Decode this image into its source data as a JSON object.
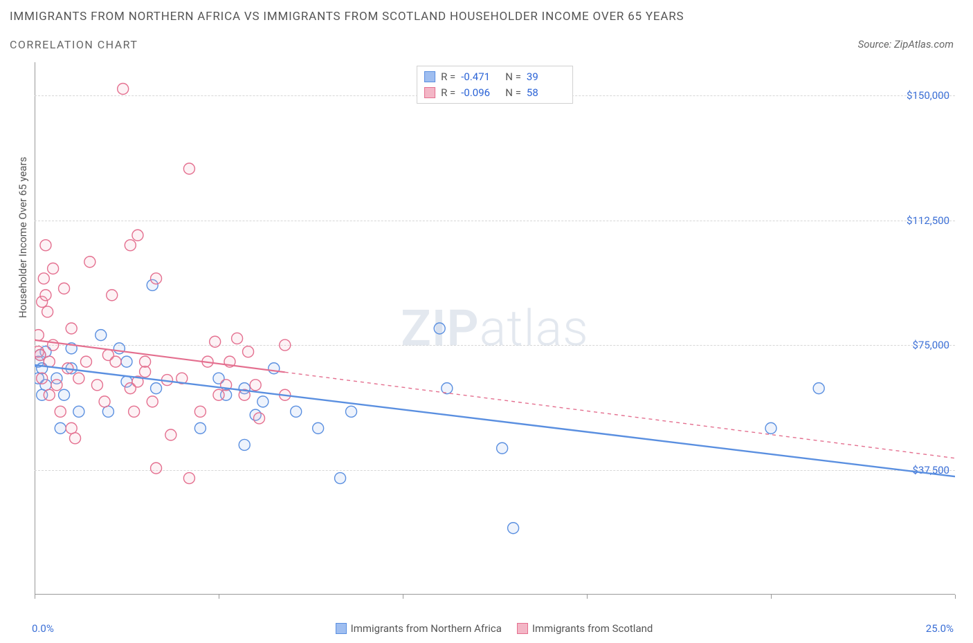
{
  "title": "IMMIGRANTS FROM NORTHERN AFRICA VS IMMIGRANTS FROM SCOTLAND HOUSEHOLDER INCOME OVER 65 YEARS",
  "subtitle": "CORRELATION CHART",
  "source_label": "Source: ",
  "source_name": "ZipAtlas.com",
  "watermark_zip": "ZIP",
  "watermark_atlas": "atlas",
  "ylabel": "Householder Income Over 65 years",
  "chart": {
    "type": "scatter",
    "background_color": "#ffffff",
    "grid_color": "#d6d6d6",
    "xlim": [
      0,
      25
    ],
    "ylim": [
      0,
      160000
    ],
    "x_ticks": [
      0,
      5,
      10,
      15,
      20,
      25
    ],
    "x_min_label": "0.0%",
    "x_max_label": "25.0%",
    "y_ticks": [
      {
        "v": 37500,
        "label": "$37,500"
      },
      {
        "v": 75000,
        "label": "$75,000"
      },
      {
        "v": 112500,
        "label": "$112,500"
      },
      {
        "v": 150000,
        "label": "$150,000"
      }
    ],
    "y_label_color": "#3b6fd6",
    "marker_radius": 8,
    "marker_fill_opacity": 0.18,
    "marker_stroke_width": 1.4,
    "series": [
      {
        "name": "Immigrants from Northern Africa",
        "color_stroke": "#5a8fe0",
        "color_fill": "#9fbef0",
        "points": [
          [
            0.1,
            70000
          ],
          [
            0.1,
            65000
          ],
          [
            0.15,
            72000
          ],
          [
            0.2,
            68000
          ],
          [
            0.2,
            60000
          ],
          [
            0.3,
            63000
          ],
          [
            0.3,
            73000
          ],
          [
            0.6,
            65000
          ],
          [
            0.7,
            50000
          ],
          [
            0.8,
            60000
          ],
          [
            1.0,
            74000
          ],
          [
            1.0,
            68000
          ],
          [
            1.2,
            55000
          ],
          [
            1.8,
            78000
          ],
          [
            2.0,
            55000
          ],
          [
            2.3,
            74000
          ],
          [
            2.5,
            70000
          ],
          [
            2.5,
            64000
          ],
          [
            3.2,
            93000
          ],
          [
            3.3,
            62000
          ],
          [
            4.5,
            50000
          ],
          [
            5.0,
            65000
          ],
          [
            5.2,
            60000
          ],
          [
            5.7,
            45000
          ],
          [
            5.7,
            62000
          ],
          [
            6.0,
            54000
          ],
          [
            6.2,
            58000
          ],
          [
            6.5,
            68000
          ],
          [
            7.1,
            55000
          ],
          [
            7.7,
            50000
          ],
          [
            8.3,
            35000
          ],
          [
            8.6,
            55000
          ],
          [
            11.0,
            80000
          ],
          [
            11.2,
            62000
          ],
          [
            12.7,
            44000
          ],
          [
            13.0,
            20000
          ],
          [
            20.0,
            50000
          ],
          [
            21.3,
            62000
          ]
        ],
        "trend": {
          "x0": 0,
          "y0": 69000,
          "x1": 25,
          "y1": 35500,
          "width": 2.4,
          "dash": "none"
        }
      },
      {
        "name": "Immigrants from Scotland",
        "color_stroke": "#e46f8f",
        "color_fill": "#f3b6c6",
        "points": [
          [
            0.1,
            73000
          ],
          [
            0.1,
            78000
          ],
          [
            0.15,
            72000
          ],
          [
            0.2,
            88000
          ],
          [
            0.2,
            65000
          ],
          [
            0.25,
            95000
          ],
          [
            0.3,
            105000
          ],
          [
            0.3,
            90000
          ],
          [
            0.35,
            85000
          ],
          [
            0.4,
            70000
          ],
          [
            0.4,
            60000
          ],
          [
            0.5,
            98000
          ],
          [
            0.5,
            75000
          ],
          [
            0.6,
            63000
          ],
          [
            0.7,
            55000
          ],
          [
            0.8,
            92000
          ],
          [
            0.9,
            68000
          ],
          [
            1.0,
            50000
          ],
          [
            1.0,
            80000
          ],
          [
            1.1,
            47000
          ],
          [
            1.2,
            65000
          ],
          [
            1.4,
            70000
          ],
          [
            1.5,
            100000
          ],
          [
            1.7,
            63000
          ],
          [
            1.9,
            58000
          ],
          [
            2.0,
            72000
          ],
          [
            2.1,
            90000
          ],
          [
            2.2,
            70000
          ],
          [
            2.4,
            152000
          ],
          [
            2.6,
            105000
          ],
          [
            2.6,
            62000
          ],
          [
            2.7,
            55000
          ],
          [
            2.8,
            108000
          ],
          [
            2.8,
            64000
          ],
          [
            3.0,
            67000
          ],
          [
            3.0,
            70000
          ],
          [
            3.2,
            58000
          ],
          [
            3.3,
            38000
          ],
          [
            3.3,
            95000
          ],
          [
            3.6,
            64500
          ],
          [
            3.7,
            48000
          ],
          [
            4.0,
            65000
          ],
          [
            4.2,
            128000
          ],
          [
            4.2,
            35000
          ],
          [
            4.5,
            55000
          ],
          [
            4.7,
            70000
          ],
          [
            4.9,
            76000
          ],
          [
            5.0,
            60000
          ],
          [
            5.2,
            63000
          ],
          [
            5.3,
            70000
          ],
          [
            5.5,
            77000
          ],
          [
            5.7,
            60000
          ],
          [
            5.8,
            73000
          ],
          [
            6.0,
            63000
          ],
          [
            6.1,
            53000
          ],
          [
            6.8,
            60000
          ],
          [
            6.8,
            75000
          ]
        ],
        "trend": {
          "x0": 0,
          "y0": 76500,
          "x1": 25,
          "y1": 41000,
          "width": 1.4,
          "dash": "5,5",
          "solid_until_x": 6.8
        }
      }
    ]
  },
  "stats": {
    "rows": [
      {
        "swatch_fill": "#9fbef0",
        "swatch_stroke": "#5a8fe0",
        "r_lbl": "R =",
        "r_val": "-0.471",
        "n_lbl": "N =",
        "n_val": "39"
      },
      {
        "swatch_fill": "#f3b6c6",
        "swatch_stroke": "#e46f8f",
        "r_lbl": "R =",
        "r_val": "-0.096",
        "n_lbl": "N =",
        "n_val": "58"
      }
    ]
  },
  "bottom_legend": [
    {
      "swatch_fill": "#9fbef0",
      "swatch_stroke": "#5a8fe0",
      "label": "Immigrants from Northern Africa"
    },
    {
      "swatch_fill": "#f3b6c6",
      "swatch_stroke": "#e46f8f",
      "label": "Immigrants from Scotland"
    }
  ]
}
